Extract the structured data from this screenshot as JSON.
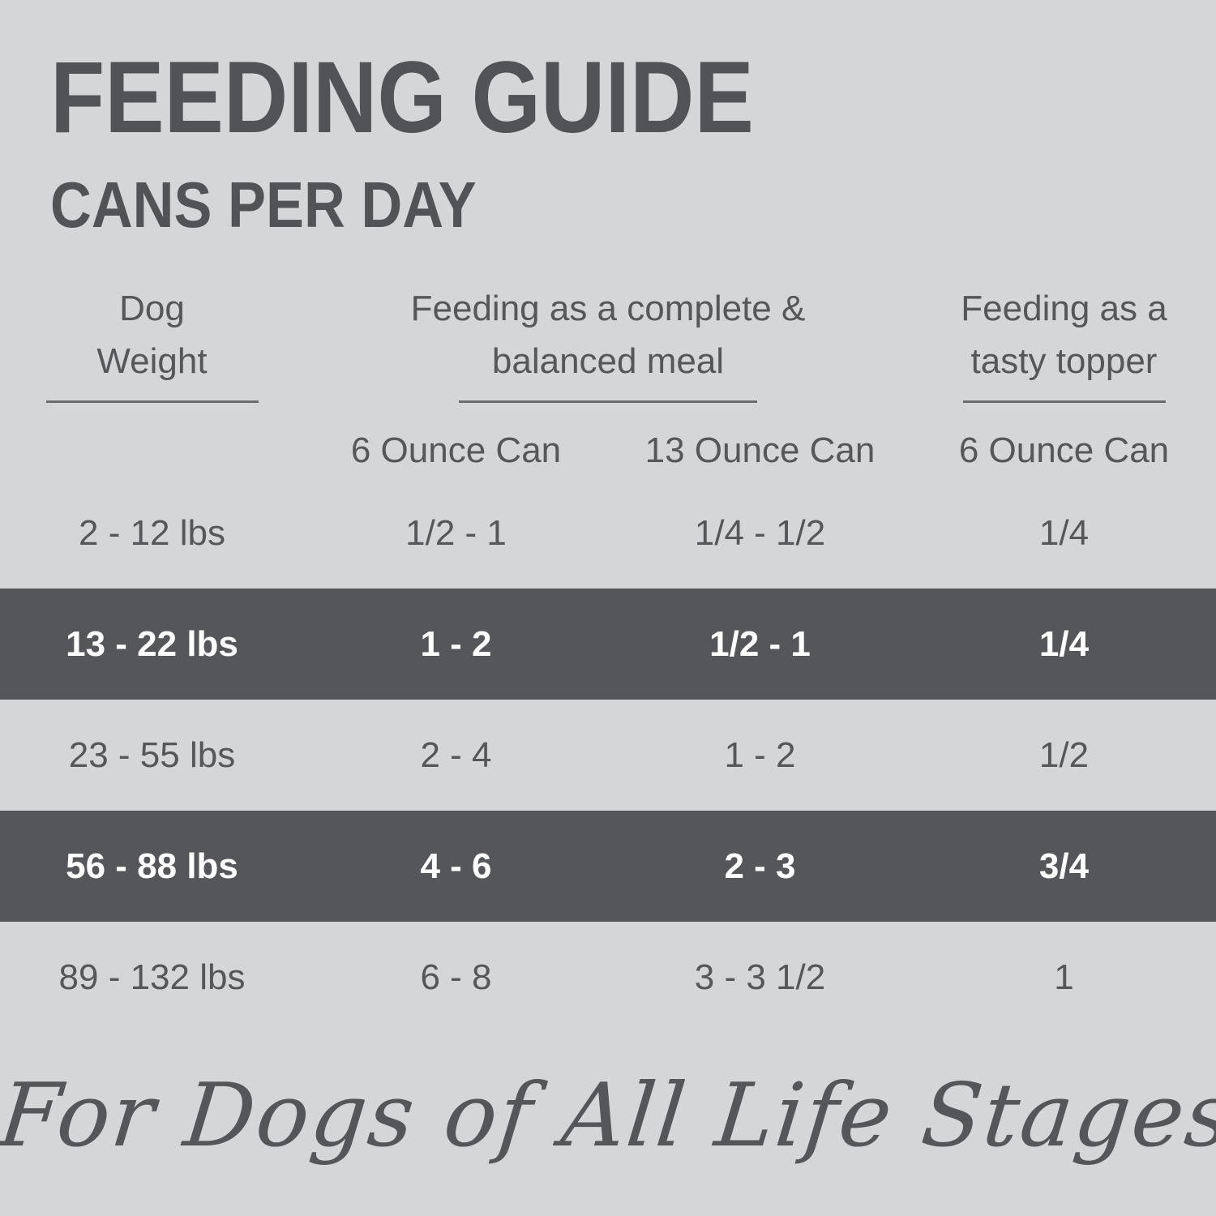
{
  "chart_data": {
    "type": "table",
    "title": "FEEDING GUIDE",
    "subtitle": "CANS PER DAY",
    "column_groups": [
      {
        "label": "Dog Weight",
        "lines": [
          "Dog",
          "Weight"
        ],
        "sub_columns": 1
      },
      {
        "label": "Feeding as a complete & balanced meal",
        "lines": [
          "Feeding as a complete &",
          "balanced meal"
        ],
        "sub_columns": 2
      },
      {
        "label": "Feeding as a tasty topper",
        "lines": [
          "Feeding as a",
          "tasty topper"
        ],
        "sub_columns": 1
      }
    ],
    "sub_headers": [
      "6 Ounce Can",
      "13 Ounce Can",
      "6 Ounce Can"
    ],
    "rows": [
      {
        "weight": "2 - 12 lbs",
        "complete_6oz_can": "1/2 - 1",
        "complete_13oz_can": "1/4 - 1/2",
        "topper_6oz_can": "1/4",
        "highlighted": false
      },
      {
        "weight": "13 - 22 lbs",
        "complete_6oz_can": "1 - 2",
        "complete_13oz_can": "1/2 - 1",
        "topper_6oz_can": "1/4",
        "highlighted": true
      },
      {
        "weight": "23 - 55 lbs",
        "complete_6oz_can": "2 - 4",
        "complete_13oz_can": "1 - 2",
        "topper_6oz_can": "1/2",
        "highlighted": false
      },
      {
        "weight": "56 - 88 lbs",
        "complete_6oz_can": "4 - 6",
        "complete_13oz_can": "2 - 3",
        "topper_6oz_can": "3/4",
        "highlighted": true
      },
      {
        "weight": "89 - 132 lbs",
        "complete_6oz_can": "6 - 8",
        "complete_13oz_can": "3 - 3 1/2",
        "topper_6oz_can": "1",
        "highlighted": false
      }
    ],
    "annotation": "For Dogs of All Life Stages"
  },
  "colors": {
    "background": "#d5d6d8",
    "text_dark_gray": "#55565a",
    "title_gray": "#525356",
    "highlight_band": "#55565a",
    "highlight_text": "#ffffff"
  }
}
